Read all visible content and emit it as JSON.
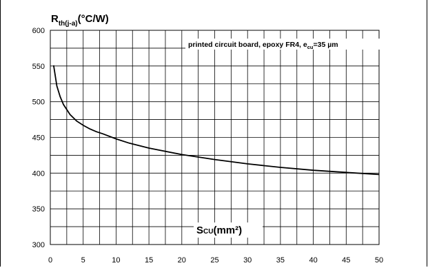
{
  "chart_data": {
    "type": "line",
    "title": "",
    "ylabel": {
      "main": "R",
      "sub": "th(j-a)",
      "suffix": "(°C/W)"
    },
    "xlabel": {
      "main": "S",
      "sub": "CU",
      "suffix": "(mm²)"
    },
    "annotation": {
      "text": "printed circuit board, epoxy FR4, e",
      "sub": "cu",
      "suffix": "=35 µm"
    },
    "xlim": [
      0,
      50
    ],
    "ylim": [
      300,
      600
    ],
    "xticks": [
      "0",
      "5",
      "10",
      "15",
      "20",
      "25",
      "30",
      "35",
      "40",
      "45",
      "50"
    ],
    "yticks": [
      "300",
      "350",
      "400",
      "450",
      "500",
      "550",
      "600"
    ],
    "grid": true,
    "series": [
      {
        "x": [
          0.5,
          1,
          1.5,
          2,
          3,
          4,
          5,
          6,
          7,
          8,
          10,
          12,
          15,
          20,
          25,
          30,
          35,
          40,
          45,
          50
        ],
        "y": [
          551,
          522,
          507,
          496,
          482,
          473,
          467,
          462,
          458,
          455,
          448,
          442,
          435,
          426,
          419,
          413,
          408,
          404,
          401,
          398
        ]
      }
    ]
  }
}
